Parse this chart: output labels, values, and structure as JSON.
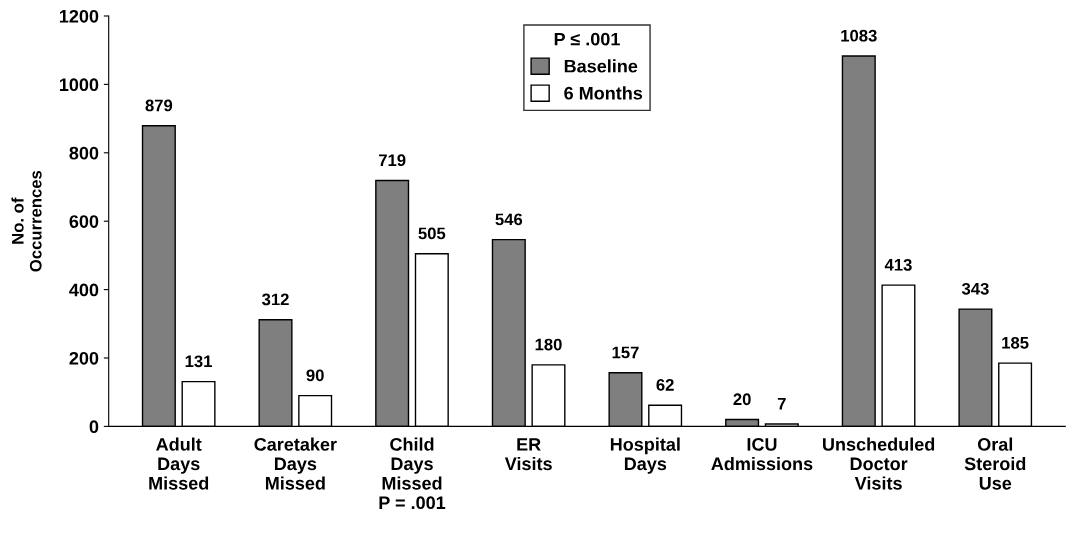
{
  "chart_data": {
    "type": "bar",
    "ylabel": "No. of\nOccurrences",
    "legend_title": "P ≤ .001",
    "legend": "top",
    "categories": [
      "Adult\nDays\nMissed",
      "Caretaker\nDays\nMissed",
      "Child\nDays\nMissed\nP = .001",
      "ER\nVisits",
      "Hospital\nDays",
      "ICU\nAdmissions",
      "Unscheduled\nDoctor\nVisits",
      "Oral\nSteroid\nUse"
    ],
    "series": [
      {
        "name": "Baseline",
        "color": "#7f7f7f",
        "values": [
          879,
          312,
          719,
          546,
          157,
          20,
          1083,
          343
        ]
      },
      {
        "name": "6 Months",
        "color": "#ffffff",
        "values": [
          131,
          90,
          505,
          180,
          62,
          7,
          413,
          185
        ]
      }
    ],
    "ylim": [
      0,
      1200
    ],
    "yticks": [
      0,
      200,
      400,
      600,
      800,
      1000,
      1200
    ],
    "data_labels": true,
    "grid": false
  }
}
